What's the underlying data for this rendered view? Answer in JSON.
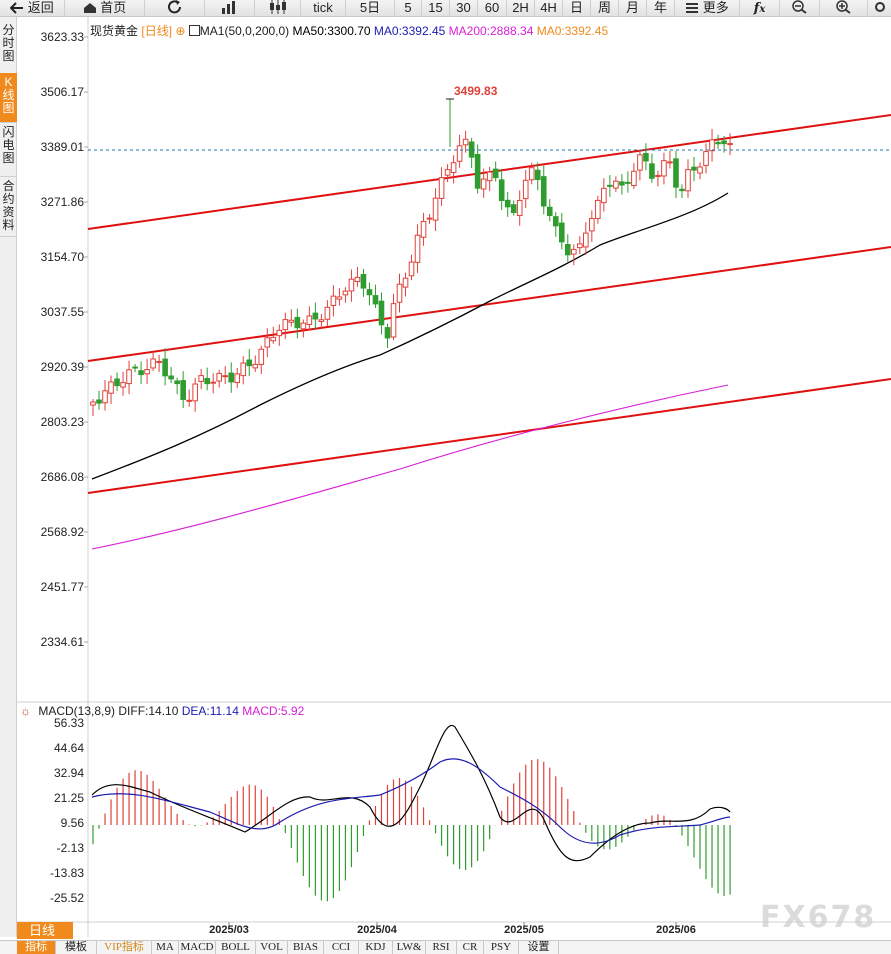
{
  "toolbar": {
    "back": "返回",
    "home": "首页",
    "tick": "tick",
    "d5": "5日",
    "m5": "5",
    "m15": "15",
    "m30": "30",
    "m60": "60",
    "h2": "2H",
    "h4": "4H",
    "day": "日",
    "week": "周",
    "month": "月",
    "year": "年",
    "more": "更多"
  },
  "sidetabs": {
    "timeshare": "分时图",
    "kline": "K线图",
    "flash": "闪电图",
    "contract": "合约资料"
  },
  "header": {
    "symbol": "现货黄金",
    "period": "[日线]",
    "ma_name": "MA1(50,0,200,0)",
    "ma50": "MA50:3300.70",
    "ma0a": "MA0:3392.45",
    "ma200": "MA200:2888.34",
    "ma0b": "MA0:3392.45"
  },
  "colors": {
    "up": "#e0413a",
    "down": "#2e9c2e",
    "ma50": "#000000",
    "ma200": "#d61fd6",
    "trend": "#e01010",
    "diff": "#000000",
    "dea": "#1c1cb0",
    "accent": "#f08a1c"
  },
  "price_axis_labels": [
    "3623.33",
    "3506.17",
    "3389.01",
    "3271.86",
    "3154.70",
    "3037.55",
    "2920.39",
    "2803.23",
    "2686.08",
    "2568.92",
    "2451.77",
    "2334.61"
  ],
  "high_label": "3499.83",
  "last_price": 3389.01,
  "macd": {
    "title": "MACD(13,8,9)",
    "diff": "DIFF:14.10",
    "dea": "DEA:11.14",
    "macd": "MACD:5.92",
    "axis_labels": [
      "56.33",
      "44.64",
      "32.94",
      "21.25",
      "9.56",
      "-2.13",
      "-13.83",
      "-25.52"
    ]
  },
  "date_labels": [
    "2025/03",
    "2025/04",
    "2025/05",
    "2025/06"
  ],
  "day_tag": "日线",
  "bottom_tabs": [
    "指标",
    "模板",
    "VIP指标",
    "MA",
    "MACD",
    "BOLL",
    "VOL",
    "BIAS",
    "CCI",
    "KDJ",
    "LW&",
    "RSI",
    "CR",
    "PSY",
    "设置"
  ],
  "watermark": "FX678"
}
